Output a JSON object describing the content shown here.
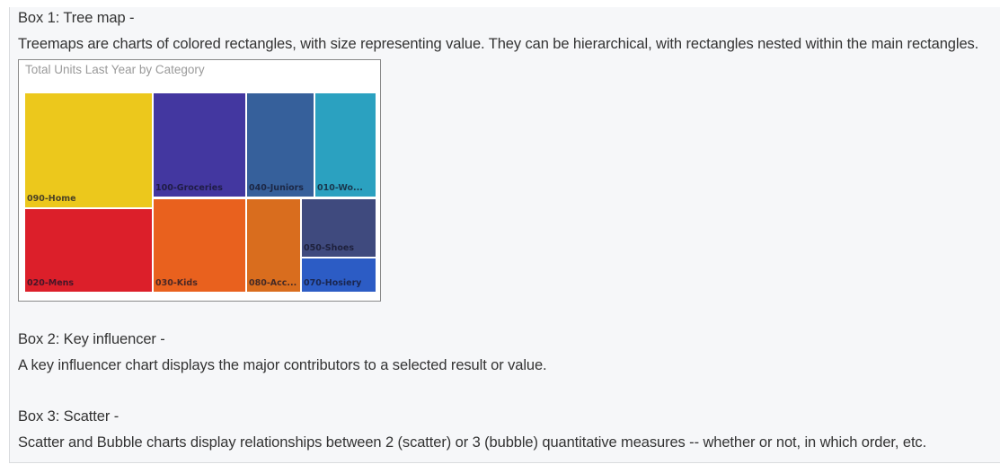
{
  "box1": {
    "heading": "Box 1: Tree map -",
    "description": "Treemaps are charts of colored rectangles, with size representing value. They can be hierarchical, with rectangles nested within the main rectangles."
  },
  "box2": {
    "heading": "Box 2: Key influencer -",
    "description": "A key influencer chart displays the major contributors to a selected result or value."
  },
  "box3": {
    "heading": "Box 3: Scatter -",
    "description": "Scatter and Bubble charts display relationships between 2 (scatter) or 3 (bubble) quantitative measures -- whether or not, in which order, etc."
  },
  "chart_data": {
    "type": "treemap",
    "title": "Total Units Last Year by Category",
    "items": [
      {
        "label": "090-Home",
        "color": "#ecc81c"
      },
      {
        "label": "020-Mens",
        "color": "#dc1f2a"
      },
      {
        "label": "100-Groceries",
        "color": "#4337a0"
      },
      {
        "label": "030-Kids",
        "color": "#e9611e"
      },
      {
        "label": "040-Juniors",
        "color": "#36609b"
      },
      {
        "label": "080-Acc...",
        "color": "#d96d1e"
      },
      {
        "label": "010-Wo...",
        "color": "#2ba1c0"
      },
      {
        "label": "050-Shoes",
        "color": "#3f4a7e"
      },
      {
        "label": "070-Hosiery",
        "color": "#2c5cc5"
      }
    ]
  }
}
